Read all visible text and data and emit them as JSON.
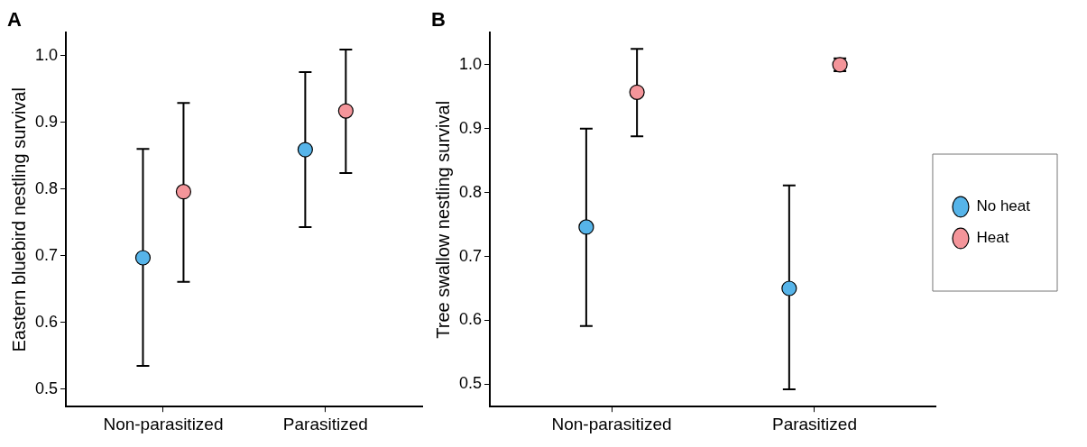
{
  "chart_data": [
    {
      "type": "scatter",
      "title": "A",
      "ylabel": "Eastern bluebird nestling survival",
      "categories": [
        "Non-parasitized",
        "Parasitized"
      ],
      "ylim": [
        0.474,
        1.034
      ],
      "yticks": [
        {
          "value": 0.5,
          "label": "0.5"
        },
        {
          "value": 0.6,
          "label": "0.6"
        },
        {
          "value": 0.7,
          "label": "0.7"
        },
        {
          "value": 0.8,
          "label": "0.8"
        },
        {
          "value": 0.9,
          "label": "0.9"
        },
        {
          "value": 1.0,
          "label": "1.0"
        }
      ],
      "marker": "circle",
      "legend": false,
      "series": [
        {
          "color": "#56b4e9",
          "values": [
            0.697,
            0.859
          ],
          "errors": [
            [
              0.535,
              0.86
            ],
            [
              0.743,
              0.975
            ]
          ]
        },
        {
          "color": "#f4959a",
          "values": [
            0.796,
            0.917
          ],
          "errors": [
            [
              0.661,
              0.929
            ],
            [
              0.824,
              1.009
            ]
          ]
        }
      ]
    },
    {
      "type": "scatter",
      "title": "B",
      "ylabel": "Tree swallow nestling survival",
      "categories": [
        "Non-parasitized",
        "Parasitized"
      ],
      "ylim": [
        0.465,
        1.05
      ],
      "yticks": [
        {
          "value": 0.5,
          "label": "0.5"
        },
        {
          "value": 0.6,
          "label": "0.6"
        },
        {
          "value": 0.7,
          "label": "0.7"
        },
        {
          "value": 0.8,
          "label": "0.8"
        },
        {
          "value": 0.9,
          "label": "0.9"
        },
        {
          "value": 1.0,
          "label": "1.0"
        }
      ],
      "marker": "circle",
      "legend": "right",
      "series": [
        {
          "name": "No heat",
          "color": "#56b4e9",
          "values": [
            0.746,
            0.65
          ],
          "errors": [
            [
              0.591,
              0.9
            ],
            [
              0.492,
              0.811
            ]
          ]
        },
        {
          "name": "Heat",
          "color": "#f4959a",
          "values": [
            0.957,
            1.0
          ],
          "errors": [
            [
              0.888,
              1.025
            ],
            [
              0.99,
              1.01
            ]
          ]
        }
      ]
    }
  ]
}
